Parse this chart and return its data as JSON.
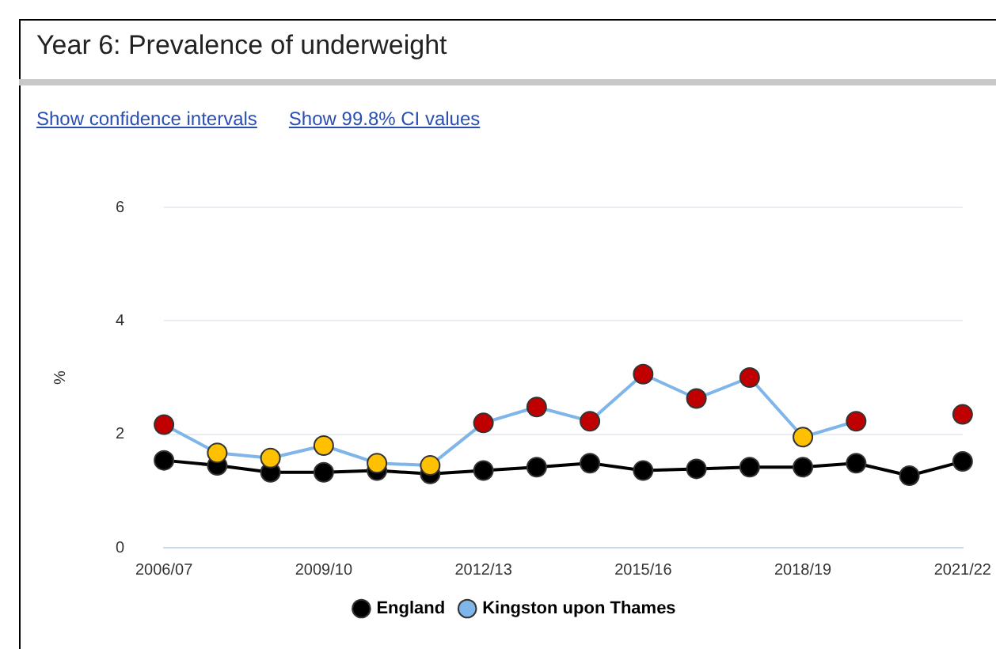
{
  "chart_data": {
    "type": "line",
    "title": "Year 6: Prevalence of underweight",
    "annotations": [
      "Show confidence intervals",
      "Show 99.8% CI values"
    ],
    "ylabel": "%",
    "categories": [
      "2006/07",
      null,
      null,
      "2009/10",
      null,
      null,
      "2012/13",
      null,
      null,
      "2015/16",
      null,
      null,
      "2018/19",
      null,
      null,
      "2021/22"
    ],
    "series": [
      {
        "name": "England",
        "color": "#000000",
        "values": [
          1.54,
          1.45,
          1.33,
          1.33,
          1.36,
          1.3,
          1.36,
          1.42,
          1.49,
          1.36,
          1.39,
          1.42,
          1.42,
          1.49,
          1.27,
          1.52
        ]
      },
      {
        "name": "Kingston upon Thames",
        "color": "#7fb5e8",
        "colors": [
          "#c00000",
          "#ffc000",
          "#ffc000",
          "#ffc000",
          "#ffc000",
          "#ffc000",
          "#c00000",
          "#c00000",
          "#c00000",
          "#c00000",
          "#c00000",
          "#c00000",
          "#ffc000",
          "#c00000",
          "#c00000",
          "#c00000"
        ],
        "values": [
          2.17,
          1.67,
          1.58,
          1.8,
          1.49,
          1.45,
          2.2,
          2.48,
          2.23,
          3.06,
          2.63,
          3.0,
          1.95,
          2.23,
          null,
          2.35
        ]
      }
    ],
    "ylim": [
      0,
      6
    ],
    "yticks": [
      0,
      2,
      4,
      6
    ],
    "grid": "y",
    "legend": "bottom",
    "marker": "circle"
  }
}
